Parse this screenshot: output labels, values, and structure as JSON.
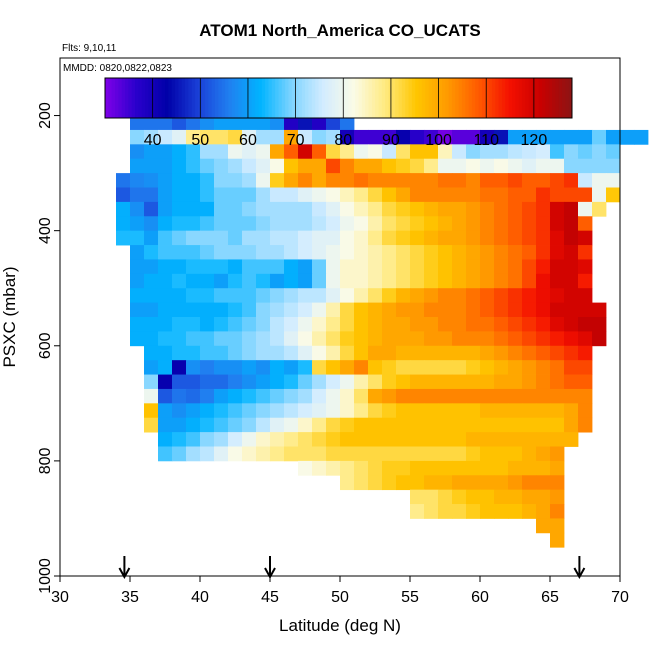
{
  "chart_data": {
    "type": "heatmap",
    "title": "ATOM1 North_America CO_UCATS",
    "subtitle_flights": "Flts: 9,10,11",
    "subtitle_dates": "MMDD: 0820,0822,0823",
    "xlabel": "Latitude (deg N)",
    "ylabel": "PSXC (mbar)",
    "xlim": [
      30,
      70
    ],
    "ylim": [
      1000,
      100
    ],
    "y_reversed": true,
    "xticks": [
      30,
      35,
      40,
      45,
      50,
      55,
      60,
      65,
      70
    ],
    "yticks": [
      200,
      400,
      600,
      800,
      1000
    ],
    "colorbar": {
      "range": [
        30,
        128
      ],
      "ticks": [
        40,
        50,
        60,
        70,
        80,
        90,
        100,
        110,
        120
      ],
      "colors": [
        "#8000e8",
        "#2a00cc",
        "#0000a8",
        "#1a40d8",
        "#2080f0",
        "#00b4ff",
        "#7fd4ff",
        "#d2ecff",
        "#fbfbe6",
        "#ffea80",
        "#ffc600",
        "#ff9a00",
        "#ff5a00",
        "#f41000",
        "#c80000",
        "#8c1414"
      ]
    },
    "arrow_latitudes": [
      34.6,
      45.0,
      67.1
    ],
    "grid": "off",
    "legend": "colorbar at top of plot area",
    "cell_size": {
      "lat": 1,
      "psxc": 25
    },
    "rows": [
      {
        "p": 175,
        "lat0": 35,
        "values": [
          45,
          50,
          48,
          47,
          55,
          55,
          50,
          52,
          55,
          55,
          48,
          40,
          45,
          40,
          45
        ]
      },
      {
        "p": 200,
        "lat0": 35,
        "values": [
          55,
          55,
          55,
          52,
          55,
          58,
          60,
          60,
          60,
          60,
          58,
          38,
          45,
          38,
          50,
          55
        ]
      },
      {
        "p": 225,
        "lat0": 35,
        "values": [
          70,
          72,
          75,
          78,
          88,
          90,
          90,
          92,
          78,
          72,
          72,
          100,
          75,
          70,
          72,
          40,
          35,
          35,
          35,
          42,
          37,
          35,
          31,
          33,
          33,
          40,
          45,
          60,
          60,
          60,
          60,
          60,
          60,
          68,
          60,
          60,
          60
        ]
      },
      {
        "p": 250,
        "lat0": 35,
        "values": [
          58,
          60,
          60,
          62,
          65,
          72,
          72,
          80,
          78,
          80,
          100,
          108,
          120,
          108,
          92,
          88,
          80,
          82,
          75,
          90,
          96,
          96,
          85,
          75,
          70,
          72,
          72,
          74,
          75,
          76,
          66,
          70,
          68,
          70,
          68
        ]
      },
      {
        "p": 275,
        "lat0": 35,
        "values": [
          60,
          60,
          60,
          62,
          65,
          68,
          70,
          72,
          75,
          78,
          82,
          96,
          100,
          100,
          110,
          104,
          100,
          100,
          96,
          94,
          92,
          88,
          80,
          80,
          82,
          80,
          82,
          80,
          78,
          80,
          80,
          70,
          70,
          70,
          70
        ]
      },
      {
        "p": 300,
        "lat0": 34,
        "values": [
          55,
          57,
          58,
          60,
          62,
          62,
          65,
          70,
          70,
          72,
          80,
          94,
          100,
          104,
          100,
          104,
          104,
          106,
          104,
          104,
          104,
          104,
          104,
          106,
          106,
          104,
          108,
          108,
          110,
          108,
          108,
          110,
          112,
          75,
          80,
          80
        ]
      },
      {
        "p": 325,
        "lat0": 34,
        "values": [
          52,
          55,
          55,
          60,
          62,
          62,
          65,
          68,
          68,
          68,
          72,
          75,
          75,
          78,
          80,
          82,
          85,
          88,
          92,
          96,
          100,
          104,
          104,
          104,
          104,
          104,
          106,
          106,
          108,
          108,
          112,
          110,
          110,
          110,
          80,
          95
        ]
      },
      {
        "p": 350,
        "lat0": 34,
        "values": [
          62,
          58,
          52,
          60,
          62,
          62,
          62,
          68,
          68,
          70,
          72,
          72,
          72,
          72,
          75,
          78,
          82,
          85,
          88,
          92,
          94,
          96,
          98,
          100,
          100,
          102,
          104,
          106,
          108,
          110,
          112,
          120,
          122,
          80,
          90
        ]
      },
      {
        "p": 375,
        "lat0": 34,
        "values": [
          62,
          60,
          58,
          62,
          64,
          64,
          66,
          68,
          68,
          68,
          70,
          72,
          72,
          72,
          74,
          76,
          80,
          82,
          86,
          90,
          92,
          94,
          96,
          98,
          100,
          102,
          104,
          106,
          108,
          110,
          112,
          120,
          122,
          108
        ]
      },
      {
        "p": 400,
        "lat0": 34,
        "values": [
          64,
          64,
          60,
          66,
          68,
          70,
          70,
          70,
          68,
          72,
          72,
          74,
          74,
          76,
          78,
          78,
          82,
          84,
          88,
          92,
          94,
          96,
          98,
          100,
          100,
          102,
          104,
          106,
          108,
          110,
          112,
          118,
          122,
          120
        ]
      },
      {
        "p": 425,
        "lat0": 35,
        "values": [
          60,
          64,
          66,
          66,
          66,
          68,
          70,
          70,
          70,
          72,
          72,
          74,
          76,
          78,
          80,
          82,
          84,
          86,
          88,
          90,
          92,
          94,
          96,
          98,
          100,
          102,
          104,
          106,
          108,
          112,
          118,
          120,
          112
        ]
      },
      {
        "p": 450,
        "lat0": 35,
        "values": [
          60,
          60,
          62,
          62,
          64,
          64,
          64,
          62,
          66,
          66,
          66,
          62,
          60,
          68,
          80,
          84,
          84,
          86,
          88,
          90,
          92,
          94,
          96,
          98,
          100,
          102,
          104,
          106,
          110,
          114,
          120,
          120,
          118
        ]
      },
      {
        "p": 475,
        "lat0": 35,
        "values": [
          60,
          62,
          62,
          64,
          62,
          62,
          60,
          64,
          66,
          64,
          60,
          62,
          60,
          68,
          80,
          84,
          84,
          86,
          88,
          90,
          92,
          94,
          96,
          98,
          100,
          102,
          104,
          106,
          110,
          116,
          120,
          120,
          114
        ]
      },
      {
        "p": 500,
        "lat0": 35,
        "values": [
          62,
          62,
          62,
          62,
          64,
          64,
          66,
          66,
          66,
          68,
          70,
          72,
          74,
          74,
          78,
          82,
          86,
          90,
          94,
          98,
          100,
          102,
          104,
          104,
          106,
          108,
          110,
          112,
          114,
          116,
          118,
          120,
          120
        ]
      },
      {
        "p": 525,
        "lat0": 35,
        "values": [
          60,
          60,
          62,
          62,
          62,
          62,
          62,
          64,
          66,
          70,
          72,
          74,
          76,
          80,
          86,
          92,
          96,
          98,
          100,
          102,
          102,
          104,
          104,
          104,
          106,
          108,
          110,
          112,
          114,
          116,
          120,
          120,
          120,
          120
        ]
      },
      {
        "p": 550,
        "lat0": 35,
        "values": [
          62,
          62,
          62,
          64,
          64,
          62,
          64,
          66,
          68,
          70,
          74,
          76,
          80,
          84,
          88,
          92,
          96,
          98,
          100,
          100,
          102,
          102,
          104,
          104,
          106,
          106,
          108,
          110,
          112,
          114,
          118,
          120,
          122,
          122
        ]
      },
      {
        "p": 575,
        "lat0": 35,
        "values": [
          62,
          62,
          64,
          64,
          66,
          66,
          68,
          68,
          70,
          72,
          74,
          78,
          82,
          86,
          90,
          94,
          96,
          98,
          100,
          100,
          100,
          102,
          102,
          104,
          104,
          104,
          106,
          108,
          110,
          112,
          114,
          116,
          118,
          122
        ]
      },
      {
        "p": 600,
        "lat0": 36,
        "values": [
          62,
          62,
          64,
          64,
          66,
          66,
          68,
          70,
          72,
          72,
          74,
          78,
          82,
          86,
          92,
          96,
          100,
          100,
          98,
          98,
          98,
          98,
          98,
          98,
          100,
          102,
          104,
          106,
          108,
          110,
          112,
          114
        ]
      },
      {
        "p": 625,
        "lat0": 36,
        "values": [
          60,
          62,
          42,
          58,
          56,
          58,
          58,
          60,
          58,
          62,
          60,
          64,
          92,
          96,
          100,
          104,
          96,
          94,
          92,
          92,
          92,
          92,
          92,
          94,
          96,
          98,
          100,
          102,
          104,
          106,
          110,
          110
        ]
      },
      {
        "p": 650,
        "lat0": 36,
        "values": [
          70,
          42,
          52,
          52,
          54,
          54,
          56,
          58,
          60,
          62,
          64,
          68,
          72,
          76,
          80,
          86,
          90,
          94,
          96,
          98,
          98,
          98,
          98,
          98,
          98,
          100,
          100,
          102,
          104,
          106,
          108,
          108
        ]
      },
      {
        "p": 675,
        "lat0": 36,
        "values": [
          80,
          52,
          55,
          54,
          56,
          60,
          62,
          64,
          66,
          68,
          70,
          72,
          76,
          80,
          84,
          90,
          100,
          102,
          104,
          104,
          104,
          104,
          104,
          104,
          104,
          104,
          104,
          104,
          104,
          104,
          104,
          104
        ]
      },
      {
        "p": 700,
        "lat0": 36,
        "values": [
          96,
          60,
          58,
          60,
          62,
          64,
          66,
          68,
          70,
          72,
          74,
          76,
          78,
          80,
          84,
          88,
          92,
          94,
          96,
          96,
          96,
          96,
          96,
          96,
          98,
          98,
          98,
          98,
          98,
          98,
          100,
          104
        ]
      },
      {
        "p": 725,
        "lat0": 36,
        "values": [
          92,
          60,
          60,
          62,
          64,
          66,
          68,
          70,
          74,
          78,
          80,
          84,
          88,
          92,
          94,
          96,
          96,
          96,
          96,
          96,
          96,
          96,
          96,
          96,
          96,
          96,
          96,
          96,
          96,
          96,
          100,
          104
        ]
      },
      {
        "p": 750,
        "lat0": 37,
        "values": [
          62,
          64,
          66,
          70,
          72,
          76,
          80,
          84,
          86,
          88,
          90,
          92,
          94,
          96,
          96,
          96,
          96,
          96,
          96,
          96,
          96,
          96,
          98,
          98,
          98,
          98,
          98,
          98,
          98,
          98
        ]
      },
      {
        "p": 775,
        "lat0": 37,
        "values": [
          66,
          68,
          72,
          74,
          78,
          82,
          84,
          86,
          88,
          90,
          90,
          90,
          92,
          92,
          92,
          92,
          92,
          92,
          92,
          92,
          92,
          92,
          94,
          96,
          96,
          96,
          98,
          100,
          102
        ]
      },
      {
        "p": 800,
        "lat0": 47,
        "values": [
          82,
          84,
          86,
          88,
          90,
          92,
          94,
          94,
          96,
          96,
          96,
          96,
          96,
          96,
          96,
          98,
          98,
          98,
          100
        ]
      },
      {
        "p": 825,
        "lat0": 50,
        "values": [
          88,
          90,
          92,
          94,
          96,
          96,
          98,
          98,
          100,
          100,
          100,
          100,
          102,
          104,
          104,
          104
        ]
      },
      {
        "p": 850,
        "lat0": 55,
        "values": [
          90,
          90,
          92,
          94,
          96,
          96,
          98,
          98,
          100,
          100,
          102
        ]
      },
      {
        "p": 875,
        "lat0": 55,
        "values": [
          88,
          90,
          92,
          92,
          94,
          96,
          96,
          96,
          98,
          100,
          104
        ]
      },
      {
        "p": 900,
        "lat0": 64,
        "values": [
          100,
          100
        ]
      },
      {
        "p": 925,
        "lat0": 65,
        "values": [
          100
        ]
      }
    ]
  }
}
